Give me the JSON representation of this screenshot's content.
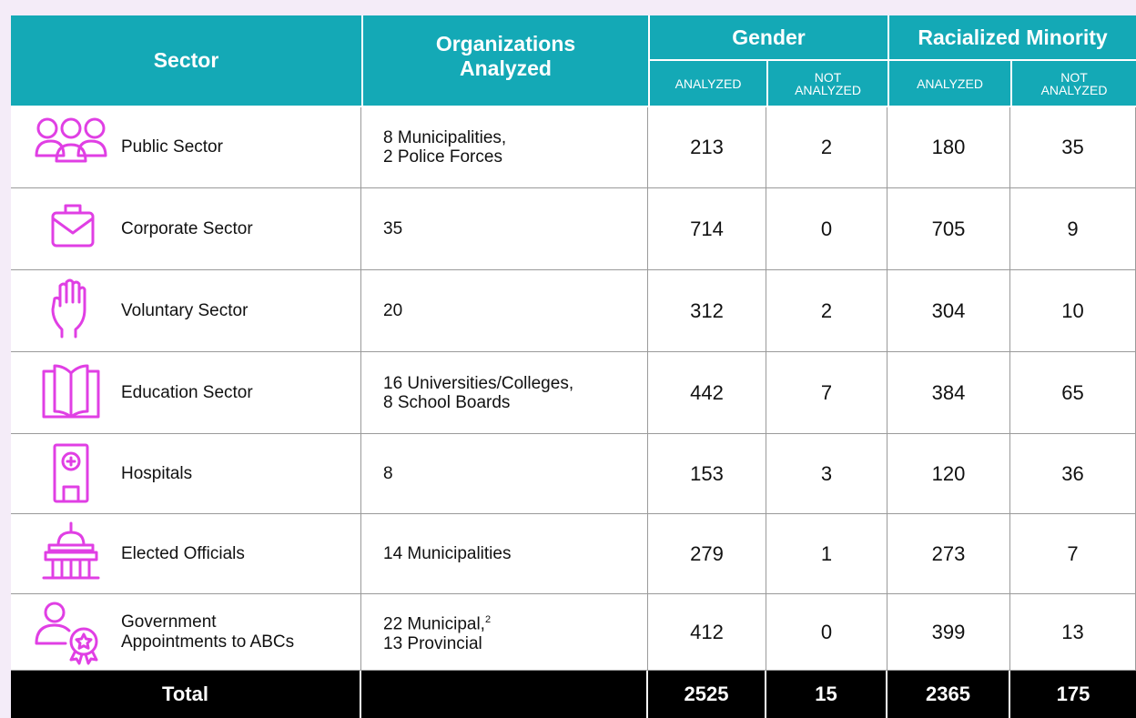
{
  "table": {
    "headers": {
      "sector": "Sector",
      "organizations": [
        "Organizations",
        "Analyzed"
      ],
      "gender": "Gender",
      "racialized": "Racialized Minority",
      "subheaders": [
        [
          "ANALYZED"
        ],
        [
          "NOT",
          "ANALYZED"
        ],
        [
          "ANALYZED"
        ],
        [
          "NOT",
          "ANALYZED"
        ]
      ]
    },
    "rows": [
      {
        "sector": [
          "Public Sector"
        ],
        "organizations": [
          "8 Municipalities,",
          "2 Police Forces"
        ],
        "values": [
          213,
          2,
          180,
          35
        ]
      },
      {
        "sector": [
          "Corporate Sector"
        ],
        "organizations": [
          "35"
        ],
        "values": [
          714,
          0,
          705,
          9
        ]
      },
      {
        "sector": [
          "Voluntary Sector"
        ],
        "organizations": [
          "20"
        ],
        "values": [
          312,
          2,
          304,
          10
        ]
      },
      {
        "sector": [
          "Education Sector"
        ],
        "organizations": [
          "16 Universities/Colleges,",
          "8 School Boards"
        ],
        "values": [
          442,
          7,
          384,
          65
        ]
      },
      {
        "sector": [
          "Hospitals"
        ],
        "organizations": [
          "8"
        ],
        "values": [
          153,
          3,
          120,
          36
        ]
      },
      {
        "sector": [
          "Elected Officials"
        ],
        "organizations": [
          "14 Municipalities"
        ],
        "values": [
          279,
          1,
          273,
          7
        ]
      },
      {
        "sector": [
          "Government",
          "Appointments to ABCs"
        ],
        "organizations": [
          "22 Municipal,",
          "13 Provincial"
        ],
        "footnote": "2",
        "values": [
          412,
          0,
          399,
          13
        ]
      }
    ],
    "total": {
      "label": "Total",
      "values": [
        2525,
        15,
        2365,
        175
      ]
    }
  }
}
